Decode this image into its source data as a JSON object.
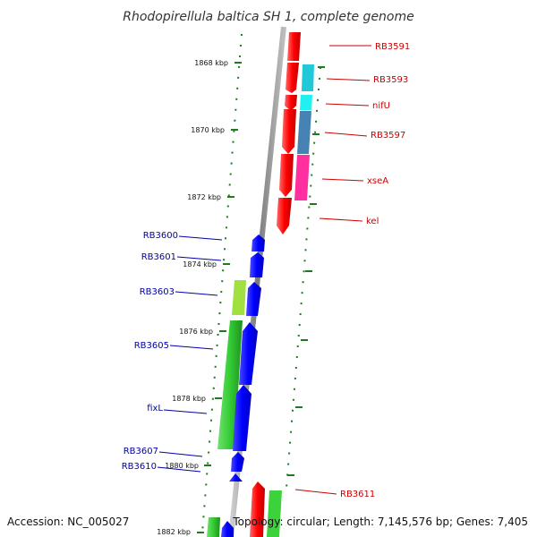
{
  "title": "Rhodopirellula baltica SH 1, complete genome",
  "footer": {
    "accession": "Accession: NC_005027",
    "summary": "Topology: circular; Length: 7,145,576 bp; Genes: 7,405"
  },
  "colors": {
    "forward_label": "#cc0000",
    "reverse_label": "#0000aa",
    "backbone": "#8c8c8c",
    "tick": "#1f7a1f"
  },
  "kbp_labels": [
    "1868 kbp",
    "1870 kbp",
    "1872 kbp",
    "1874 kbp",
    "1876 kbp",
    "1878 kbp",
    "1880 kbp",
    "1882 kbp"
  ],
  "genes_forward": [
    {
      "label": "RB3591",
      "color": "#ff1010"
    },
    {
      "label": "RB3593",
      "color": "#ff1010"
    },
    {
      "label": "nifU",
      "color": "#ff1010"
    },
    {
      "label": "RB3597",
      "color": "#ff1010"
    },
    {
      "label": "xseA",
      "color": "#ff1010"
    },
    {
      "label": "kel",
      "color": "#ff1010"
    },
    {
      "label": "RB3611",
      "color": "#ff1010"
    }
  ],
  "genes_reverse": [
    {
      "label": "RB3600",
      "color": "#1010ff"
    },
    {
      "label": "RB3601",
      "color": "#1010ff"
    },
    {
      "label": "RB3603",
      "color": "#1010ff"
    },
    {
      "label": "RB3605",
      "color": "#1010ff"
    },
    {
      "label": "fixL",
      "color": "#1010ff"
    },
    {
      "label": "RB3607",
      "color": "#1010ff"
    },
    {
      "label": "RB3610",
      "color": "#1010ff"
    }
  ],
  "features_outer": [
    {
      "color": "#20c8d8"
    },
    {
      "color": "#20f0f0"
    },
    {
      "color": "#4682b4"
    },
    {
      "color": "#ff2fa0"
    },
    {
      "color": "#3cd23c"
    }
  ],
  "features_inner": [
    {
      "color": "#a0e040"
    },
    {
      "color": "#3cc83c"
    },
    {
      "color": "#3cc83c"
    }
  ]
}
